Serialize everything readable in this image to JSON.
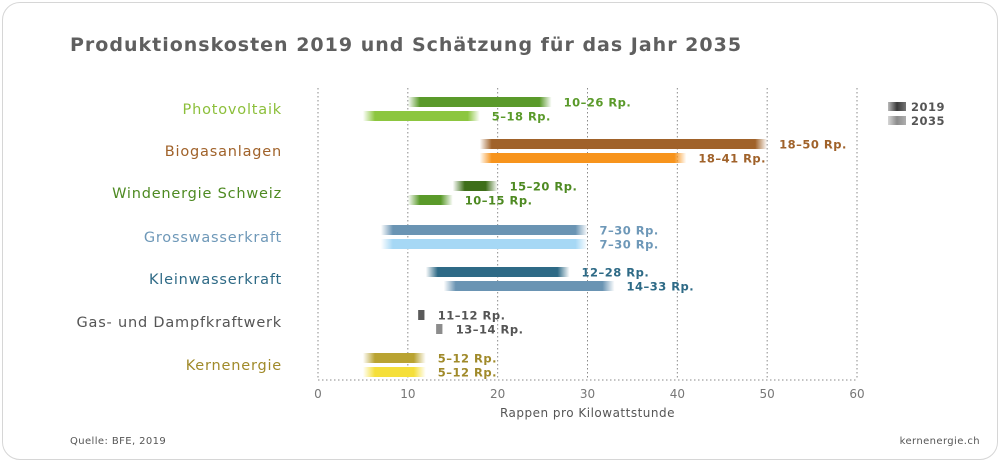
{
  "chart_data": {
    "type": "bar",
    "subtype": "floating-range-horizontal",
    "title": "Produktionskosten 2019 und Schätzung für das Jahr 2035",
    "xlabel": "Rappen pro Kilowattstunde",
    "ylabel": "",
    "xlim": [
      0,
      60
    ],
    "x_ticks": [
      0,
      10,
      20,
      30,
      40,
      50,
      60
    ],
    "grid": true,
    "legend_position": "top-right",
    "legend": [
      {
        "name": "2019",
        "color": "#3a3a3a"
      },
      {
        "name": "2035",
        "color": "#8c8c8c"
      }
    ],
    "categories": [
      {
        "name": "Photovoltaik",
        "label_color": "#8cbf3a",
        "series": [
          {
            "year": "2019",
            "min": 10,
            "max": 26,
            "label": "10–26 Rp.",
            "color": "#5a9a2a",
            "label_color": "#5a9a2a"
          },
          {
            "year": "2035",
            "min": 5,
            "max": 18,
            "label": "5–18 Rp.",
            "color": "#8cc63f",
            "label_color": "#5a9a2a"
          }
        ]
      },
      {
        "name": "Biogasanlagen",
        "label_color": "#a0622a",
        "series": [
          {
            "year": "2019",
            "min": 18,
            "max": 50,
            "label": "18–50 Rp.",
            "color": "#a0622a",
            "label_color": "#a0622a"
          },
          {
            "year": "2035",
            "min": 18,
            "max": 41,
            "label": "18–41 Rp.",
            "color": "#f7941d",
            "label_color": "#a0622a"
          }
        ]
      },
      {
        "name": "Windenergie Schweiz",
        "label_color": "#4e8a22",
        "series": [
          {
            "year": "2019",
            "min": 15,
            "max": 20,
            "label": "15–20 Rp.",
            "color": "#3e6e1a",
            "label_color": "#4e8a22"
          },
          {
            "year": "2035",
            "min": 10,
            "max": 15,
            "label": "10–15 Rp.",
            "color": "#5a9a2a",
            "label_color": "#4e8a22"
          }
        ]
      },
      {
        "name": "Grosswasserkraft",
        "label_color": "#6e98b8",
        "series": [
          {
            "year": "2019",
            "min": 7,
            "max": 30,
            "label": "7–30 Rp.",
            "color": "#6a94b3",
            "label_color": "#6e98b8"
          },
          {
            "year": "2035",
            "min": 7,
            "max": 30,
            "label": "7–30 Rp.",
            "color": "#a6d8f5",
            "label_color": "#6e98b8"
          }
        ]
      },
      {
        "name": "Kleinwasserkraft",
        "label_color": "#2e6a86",
        "series": [
          {
            "year": "2019",
            "min": 12,
            "max": 28,
            "label": "12–28 Rp.",
            "color": "#2e6a86",
            "label_color": "#2e6a86"
          },
          {
            "year": "2035",
            "min": 14,
            "max": 33,
            "label": "14–33 Rp.",
            "color": "#6a94b3",
            "label_color": "#2e6a86"
          }
        ]
      },
      {
        "name": "Gas- und Dampfkraftwerk",
        "label_color": "#555555",
        "series": [
          {
            "year": "2019",
            "min": 11,
            "max": 12,
            "label": "11–12 Rp.",
            "color": "#5a5a5a",
            "label_color": "#555555"
          },
          {
            "year": "2035",
            "min": 13,
            "max": 14,
            "label": "13–14 Rp.",
            "color": "#8c8c8c",
            "label_color": "#555555"
          }
        ]
      },
      {
        "name": "Kernenergie",
        "label_color": "#a08a2a",
        "series": [
          {
            "year": "2019",
            "min": 5,
            "max": 12,
            "label": "5–12 Rp.",
            "color": "#b9a332",
            "label_color": "#a08a2a"
          },
          {
            "year": "2035",
            "min": 5,
            "max": 12,
            "label": "5–12 Rp.",
            "color": "#f5df3a",
            "label_color": "#a08a2a"
          }
        ]
      }
    ]
  },
  "footer": {
    "source": "Quelle: BFE, 2019",
    "site": "kernenergie.ch"
  }
}
